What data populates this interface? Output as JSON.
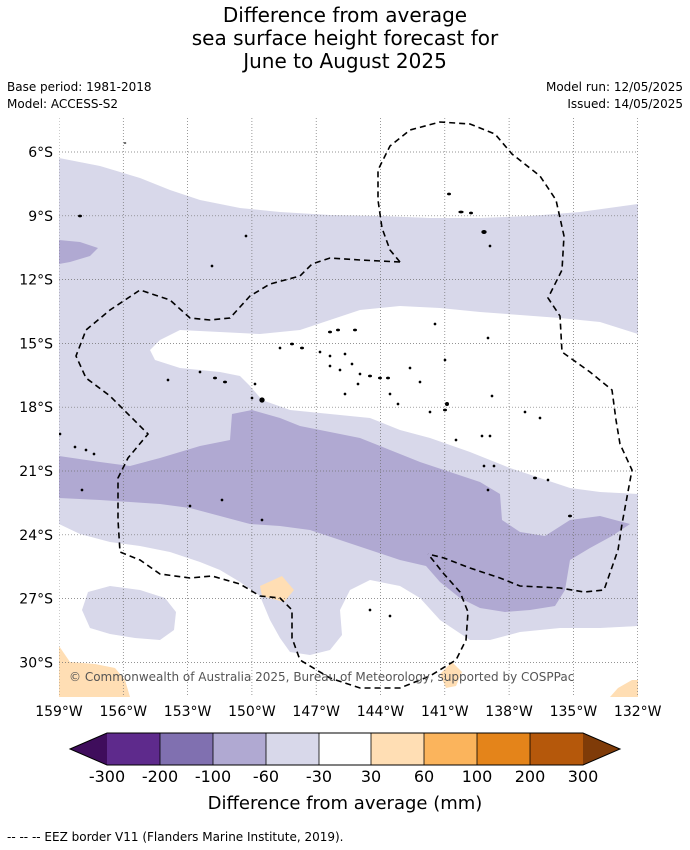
{
  "title": {
    "line1": "Difference from average",
    "line2": "sea surface height forecast for",
    "line3": "June to August 2025"
  },
  "meta": {
    "base_period": "Base period: 1981-2018",
    "model": "Model: ACCESS-S2",
    "model_run": "Model run: 12/05/2025",
    "issued": "Issued: 14/05/2025"
  },
  "map": {
    "lon_labels": [
      "159°W",
      "156°W",
      "153°W",
      "150°W",
      "147°W",
      "144°W",
      "141°W",
      "138°W",
      "135°W",
      "132°W"
    ],
    "lat_labels": [
      "6°S",
      "9°S",
      "12°S",
      "15°S",
      "18°S",
      "21°S",
      "24°S",
      "27°S",
      "30°S"
    ],
    "copyright": "© Commonwealth of Australia 2025, Bureau of Meteorology, supported by COSPPac",
    "colors": {
      "c_m300": "#3f0d5c",
      "c_m200": "#5e2a8c",
      "c_m100": "#8070b0",
      "c_m60": "#b0a9d2",
      "c_m30": "#d8d8ea",
      "c_0": "#ffffff",
      "c_30": "#ffdeb4",
      "c_60": "#fbb45c",
      "c_100": "#e4841a",
      "c_200": "#b5580b",
      "c_300": "#7f3b08"
    }
  },
  "legend": {
    "ticks": [
      "-300",
      "-200",
      "-100",
      "-60",
      "-30",
      "30",
      "60",
      "100",
      "200",
      "300"
    ],
    "label": "Difference from average (mm)"
  },
  "footnote": "-- -- -- EEZ border V11 (Flanders Marine Institute, 2019)."
}
